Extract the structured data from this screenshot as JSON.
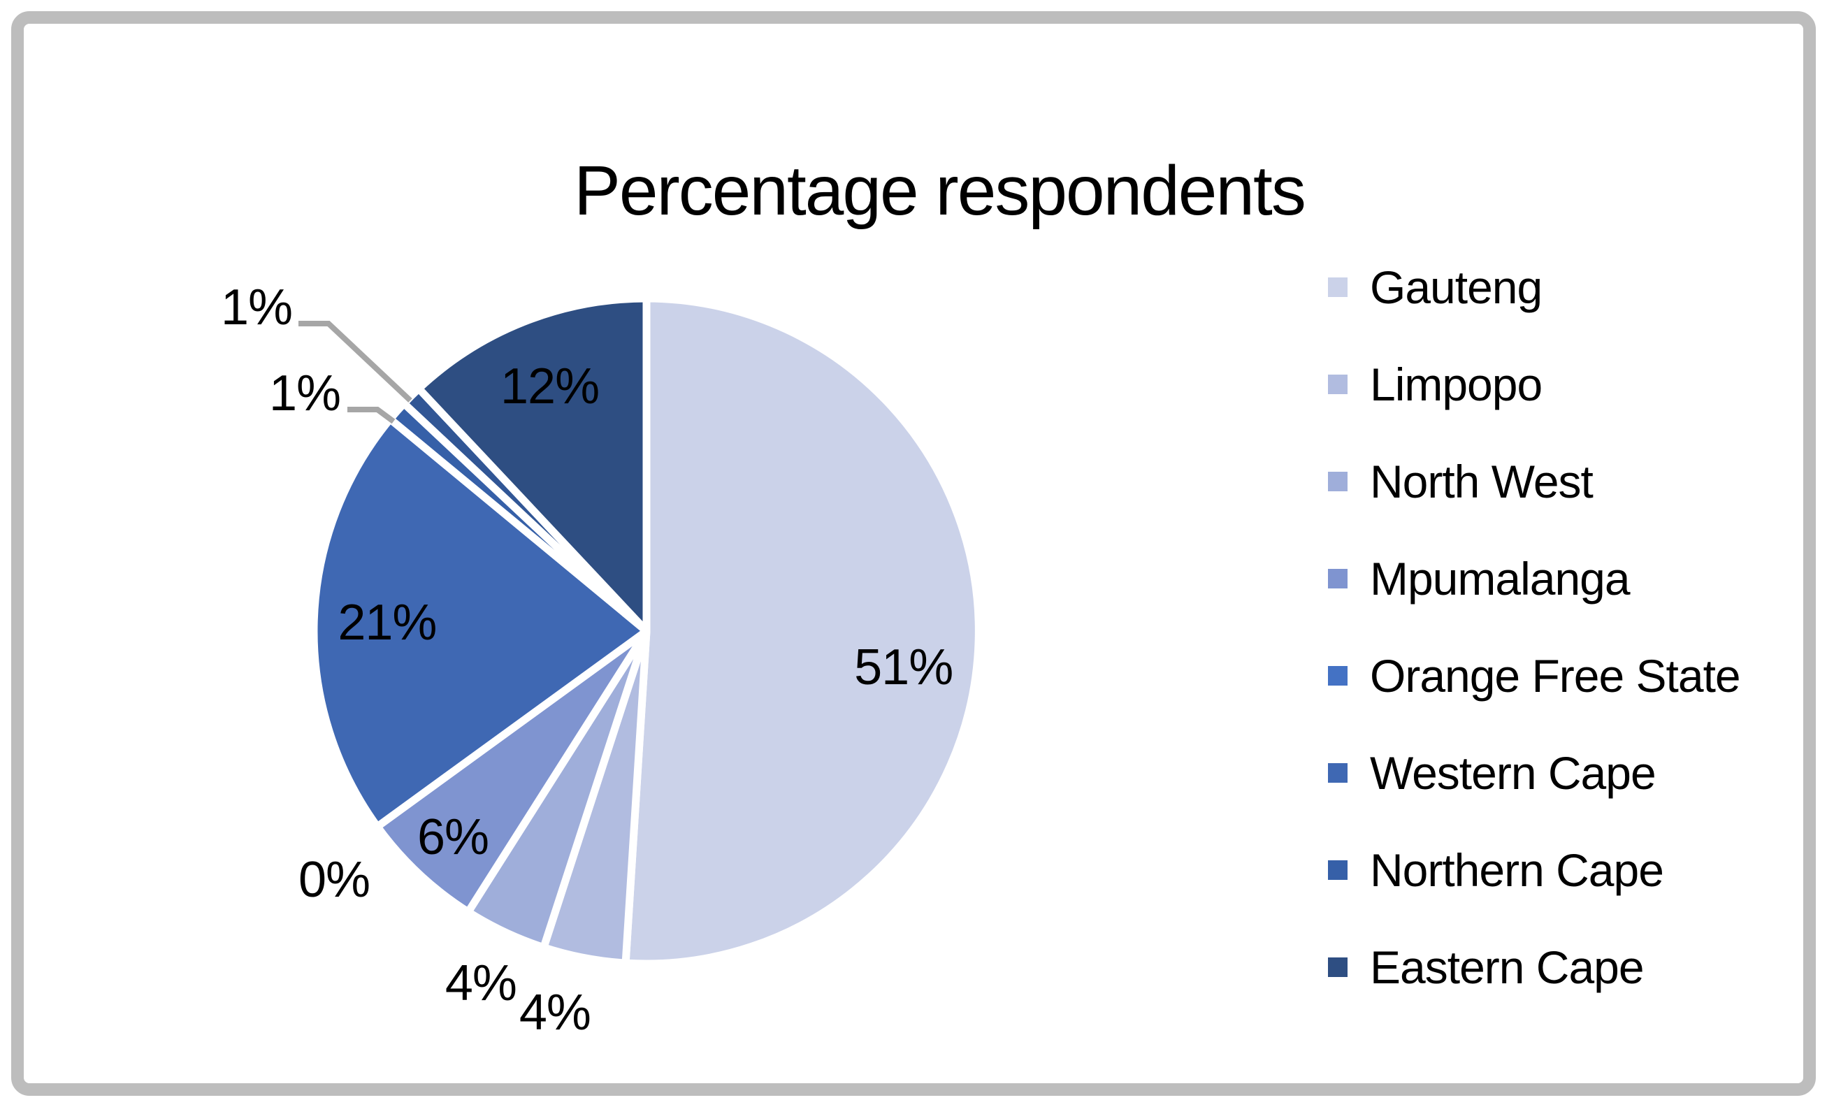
{
  "title": "Percentage respondents",
  "chart_data": {
    "type": "pie",
    "title": "Percentage respondents",
    "legend_position": "right",
    "start_angle_deg": 0,
    "direction": "clockwise",
    "total": 100,
    "slices": [
      {
        "label": "Gauteng",
        "value": 51,
        "value_label": "51%",
        "color": "#CBD2E9",
        "in_legend": true
      },
      {
        "label": "Limpopo",
        "value": 4,
        "value_label": "4%",
        "color": "#B1BCE0",
        "in_legend": true
      },
      {
        "label": "North West",
        "value": 4,
        "value_label": "4%",
        "color": "#9FAEDA",
        "in_legend": true
      },
      {
        "label": "Mpumalanga",
        "value": 6,
        "value_label": "6%",
        "color": "#7F94D0",
        "in_legend": true
      },
      {
        "label": "Orange Free State",
        "value": 0,
        "value_label": "0%",
        "color": "#4472C4",
        "in_legend": true
      },
      {
        "label": "Western Cape",
        "value": 21,
        "value_label": "21%",
        "color": "#3F68B3",
        "in_legend": true
      },
      {
        "label": "Northern Cape",
        "value": 1,
        "value_label": "1%",
        "color": "#3660A8",
        "in_legend": true
      },
      {
        "label": "",
        "value": 1,
        "value_label": "1%",
        "color": "#315695",
        "in_legend": false
      },
      {
        "label": "Eastern Cape",
        "value": 12,
        "value_label": "12%",
        "color": "#2E4E82",
        "in_legend": true
      }
    ]
  },
  "colors": {
    "background": "#FFFFFF",
    "frame_border": "#BDBDBD",
    "slice_border": "#FFFFFF",
    "label_text": "#000000",
    "legend_text": "#000000",
    "leader_line": "#A6A6A6"
  }
}
